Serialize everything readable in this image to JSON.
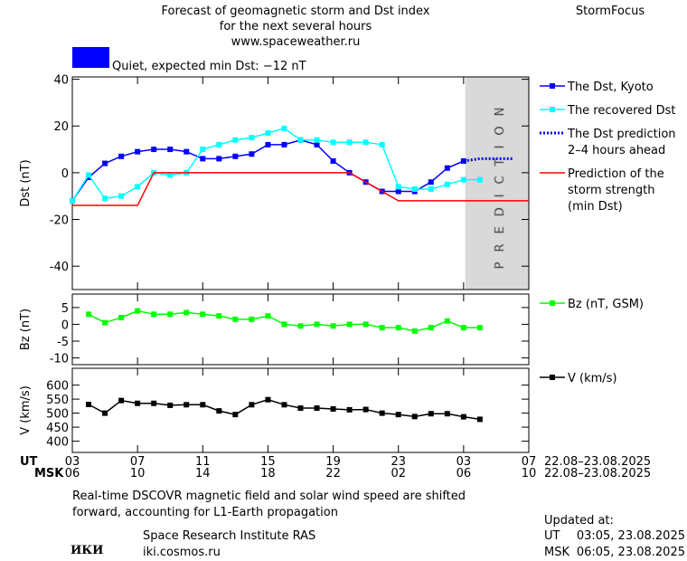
{
  "header": {
    "title_lines": [
      "Forecast of geomagnetic storm and Dst index",
      "for the next several hours",
      "www.spaceweather.ru"
    ],
    "brand": "StormFocus",
    "status": {
      "color": "#0000ff",
      "text": "Quiet, expected min Dst: −12 nT"
    }
  },
  "chart_data": [
    {
      "type": "line",
      "ylabel": "Dst (nT)",
      "xlim": [
        0,
        28
      ],
      "ylim": [
        -50,
        41
      ],
      "yticks": [
        -40,
        -20,
        0,
        20,
        40
      ],
      "prediction_region": [
        24.1,
        28
      ],
      "prediction_label": "PREDICTION",
      "series": [
        {
          "name": "The Dst, Kyoto",
          "color": "#0000ff",
          "marker": "square",
          "x": [
            0,
            1,
            2,
            3,
            4,
            5,
            6,
            7,
            8,
            9,
            10,
            11,
            12,
            13,
            14,
            15,
            16,
            17,
            18,
            19,
            20,
            21,
            22,
            23,
            24
          ],
          "values": [
            -12,
            -2,
            4,
            7,
            9,
            10,
            10,
            9,
            6,
            6,
            7,
            8,
            12,
            12,
            14,
            12,
            5,
            0,
            -4,
            -8,
            -8,
            -8,
            -4,
            2,
            5
          ]
        },
        {
          "name": "The recovered Dst",
          "color": "#00ffff",
          "marker": "square",
          "x": [
            0,
            1,
            2,
            3,
            4,
            5,
            6,
            7,
            8,
            9,
            10,
            11,
            12,
            13,
            14,
            15,
            16,
            17,
            18,
            19,
            20,
            21,
            22,
            23,
            24,
            25
          ],
          "values": [
            -12,
            -1,
            -11,
            -10,
            -6,
            0,
            -1,
            0,
            10,
            12,
            14,
            15,
            17,
            19,
            14,
            14,
            13,
            13,
            13,
            12,
            -6,
            -7,
            -7,
            -5,
            -3,
            -3
          ]
        },
        {
          "name": "The Dst prediction\n2–4 hours ahead",
          "color": "#0000ff",
          "style": "dotted",
          "x": [
            24,
            25,
            26,
            27
          ],
          "values": [
            5,
            6,
            6,
            6
          ]
        },
        {
          "name": "Prediction of the\nstorm strength\n(min Dst)",
          "color": "#ff0000",
          "x": [
            0,
            4,
            5,
            17,
            20,
            28
          ],
          "values": [
            -14,
            -14,
            0,
            0,
            -12,
            -12
          ]
        }
      ]
    },
    {
      "type": "line",
      "ylabel": "Bz (nT)",
      "xlim": [
        0,
        28
      ],
      "ylim": [
        -12,
        9
      ],
      "yticks": [
        -10,
        -5,
        0,
        5
      ],
      "series": [
        {
          "name": "Bz (nT, GSM)",
          "color": "#00ff00",
          "marker": "square",
          "x": [
            1,
            2,
            3,
            4,
            5,
            6,
            7,
            8,
            9,
            10,
            11,
            12,
            13,
            14,
            15,
            16,
            17,
            18,
            19,
            20,
            21,
            22,
            23,
            24,
            25
          ],
          "values": [
            3,
            0.5,
            2,
            4,
            3,
            3,
            3.5,
            3,
            2.5,
            1.5,
            1.5,
            2.5,
            0,
            -0.5,
            0,
            -0.5,
            0,
            0,
            -1,
            -1,
            -2,
            -1,
            1,
            -1,
            -1
          ]
        }
      ]
    },
    {
      "type": "line",
      "ylabel": "V (km/s)",
      "xlim": [
        0,
        28
      ],
      "ylim": [
        360,
        660
      ],
      "yticks": [
        400,
        450,
        500,
        550,
        600
      ],
      "series": [
        {
          "name": "V (km/s)",
          "color": "#000000",
          "marker": "square",
          "x": [
            1,
            2,
            3,
            4,
            5,
            6,
            7,
            8,
            9,
            10,
            11,
            12,
            13,
            14,
            15,
            16,
            17,
            18,
            19,
            20,
            21,
            22,
            23,
            24,
            25
          ],
          "values": [
            531,
            500,
            545,
            535,
            535,
            528,
            530,
            530,
            508,
            495,
            530,
            548,
            530,
            518,
            518,
            515,
            512,
            513,
            500,
            495,
            488,
            498,
            498,
            487,
            478
          ]
        }
      ],
      "x_label": "UT",
      "x2_label": "MSK",
      "date_range": "22.08–23.08.2025",
      "date_range_msk": "22.08–23.08.2025",
      "xticks": [
        {
          "value": 0,
          "label": "03"
        },
        {
          "value": 4,
          "label": "07"
        },
        {
          "value": 8,
          "label": "11"
        },
        {
          "value": 12,
          "label": "15"
        },
        {
          "value": 16,
          "label": "19"
        },
        {
          "value": 20,
          "label": "23"
        },
        {
          "value": 24,
          "label": "03"
        },
        {
          "value": 28,
          "label": "07"
        }
      ],
      "xticks_msk": [
        {
          "value": 0,
          "label": "06"
        },
        {
          "value": 4,
          "label": "10"
        },
        {
          "value": 8,
          "label": "14"
        },
        {
          "value": 12,
          "label": "18"
        },
        {
          "value": 16,
          "label": "22"
        },
        {
          "value": 20,
          "label": "02"
        },
        {
          "value": 24,
          "label": "06"
        },
        {
          "value": 28,
          "label": "10"
        }
      ]
    }
  ],
  "footer": {
    "note_lines": [
      "Real-time DSCOVR magnetic field and solar wind speed are shifted",
      "forward, accounting for L1-Earth propagation"
    ],
    "logo": "ИКИ",
    "institute": "Space Research Institute RAS",
    "url": "iki.cosmos.ru",
    "updated": {
      "title": "Updated at:",
      "rows": [
        [
          "UT",
          "03:05, 23.08.2025"
        ],
        [
          "MSK",
          "06:05, 23.08.2025"
        ]
      ]
    }
  }
}
